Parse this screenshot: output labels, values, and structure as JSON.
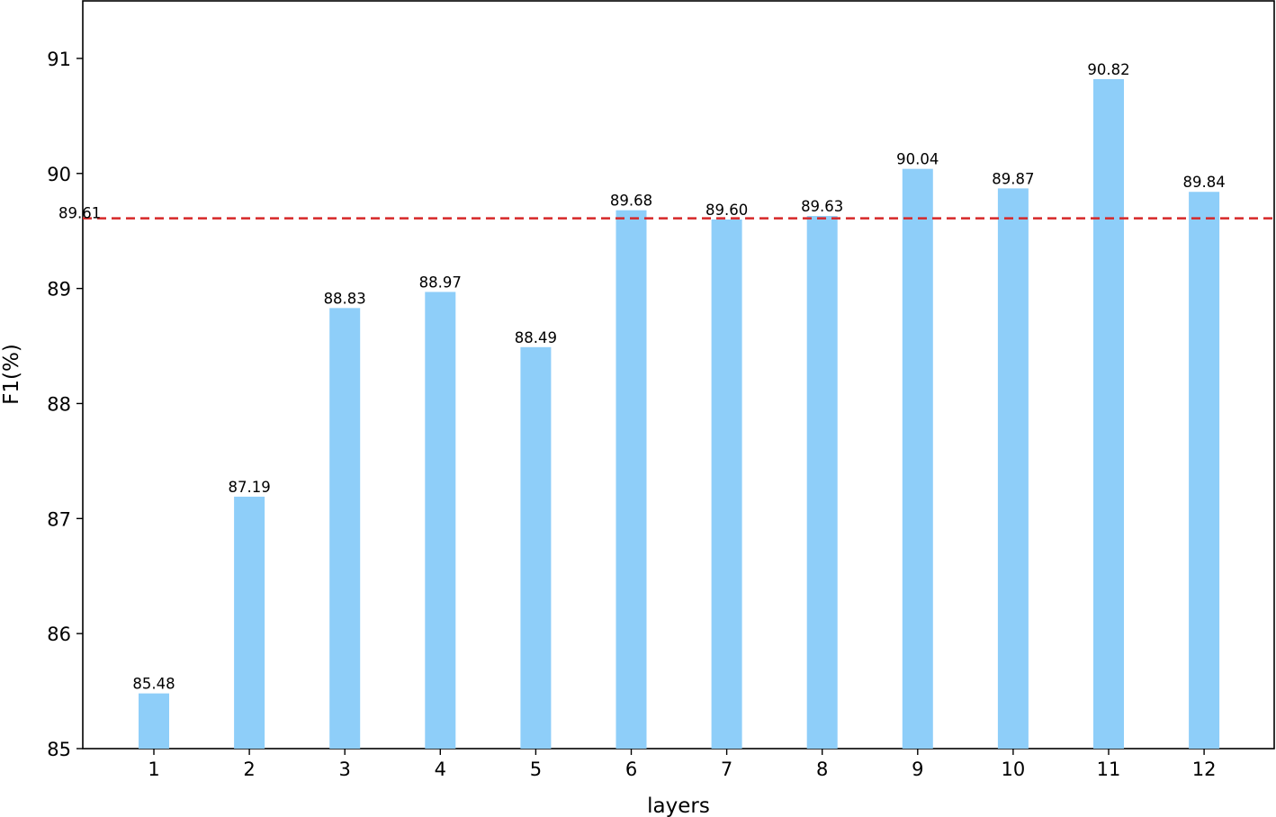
{
  "chart_data": {
    "type": "bar",
    "categories": [
      "1",
      "2",
      "3",
      "4",
      "5",
      "6",
      "7",
      "8",
      "9",
      "10",
      "11",
      "12"
    ],
    "values": [
      85.48,
      87.19,
      88.83,
      88.97,
      88.49,
      89.68,
      89.6,
      89.63,
      90.04,
      89.87,
      90.82,
      89.84
    ],
    "value_labels": [
      "85.48",
      "87.19",
      "88.83",
      "88.97",
      "88.49",
      "89.68",
      "89.60",
      "89.63",
      "90.04",
      "89.87",
      "90.82",
      "89.84"
    ],
    "xlabel": "layers",
    "ylabel": "F1(%)",
    "ylim": [
      85,
      91.5
    ],
    "yticks": [
      85,
      86,
      87,
      88,
      89,
      90,
      91
    ],
    "ytick_labels": [
      "85",
      "86",
      "87",
      "88",
      "89",
      "90",
      "91"
    ],
    "reference_line": {
      "value": 89.61,
      "label": "89.61",
      "style": "dashed",
      "color": "#d62728"
    },
    "bar_color": "#8ecef9",
    "grid": false,
    "legend": "none"
  }
}
